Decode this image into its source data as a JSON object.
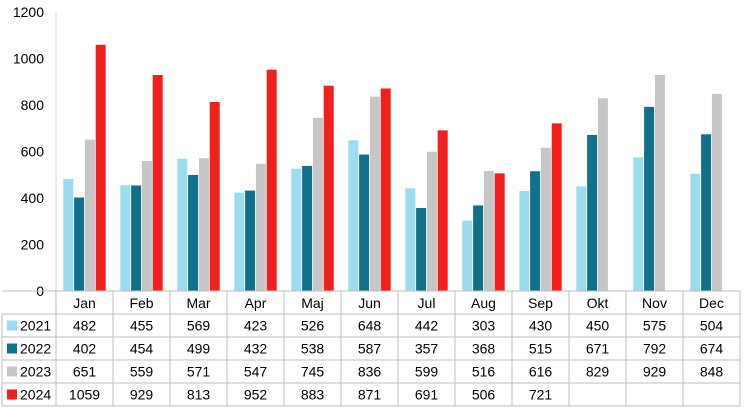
{
  "chart_data": {
    "type": "bar",
    "categories": [
      "Jan",
      "Feb",
      "Mar",
      "Apr",
      "Maj",
      "Jun",
      "Jul",
      "Aug",
      "Sep",
      "Okt",
      "Nov",
      "Dec"
    ],
    "ylim": [
      0,
      1200
    ],
    "y_ticks": [
      "0",
      "200",
      "400",
      "600",
      "800",
      "1000",
      "1200"
    ],
    "legend": "data-table",
    "series": [
      {
        "name": "2021",
        "color": "#9ddcee",
        "values": [
          482,
          455,
          569,
          423,
          526,
          648,
          442,
          303,
          430,
          450,
          575,
          504
        ]
      },
      {
        "name": "2022",
        "color": "#13708a",
        "values": [
          402,
          454,
          499,
          432,
          538,
          587,
          357,
          368,
          515,
          671,
          792,
          674
        ]
      },
      {
        "name": "2023",
        "color": "#c6c6c6",
        "values": [
          651,
          559,
          571,
          547,
          745,
          836,
          599,
          516,
          616,
          829,
          929,
          848
        ]
      },
      {
        "name": "2024",
        "color": "#f21f1f",
        "values": [
          1059,
          929,
          813,
          952,
          883,
          871,
          691,
          506,
          721,
          null,
          null,
          null
        ]
      }
    ]
  }
}
